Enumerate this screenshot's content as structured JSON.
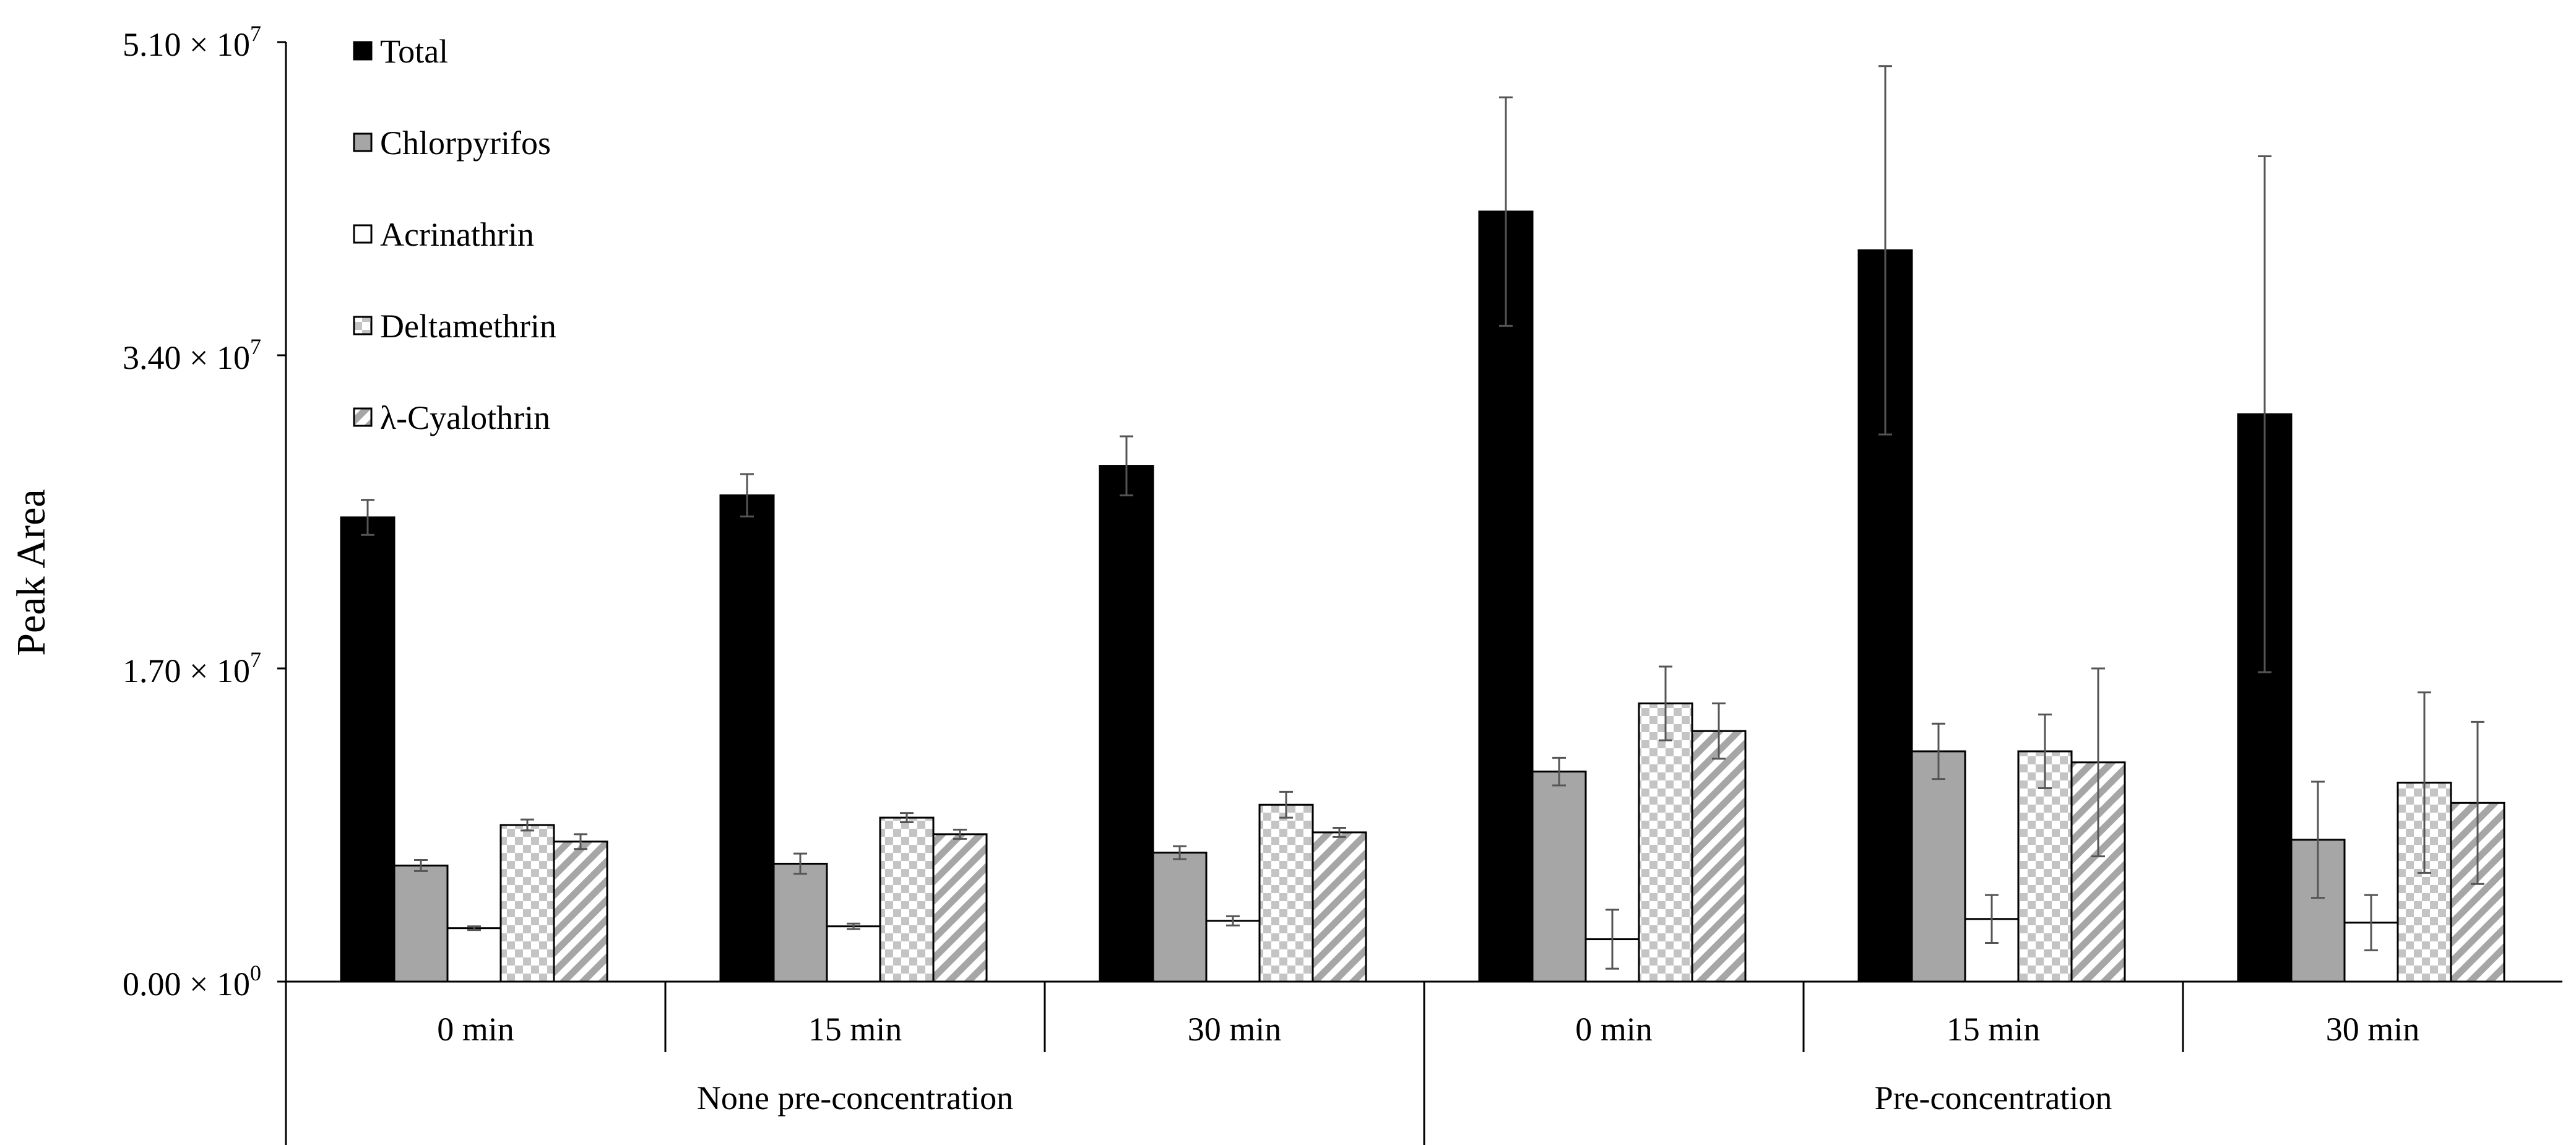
{
  "chart_data": {
    "type": "bar",
    "title": "",
    "xlabel": "",
    "ylabel": "Peak  Area",
    "ylim": [
      0,
      51000000
    ],
    "yticks": [
      {
        "value": 0,
        "mantissa": "0.00 × 10",
        "exp": "0"
      },
      {
        "value": 17000000,
        "mantissa": "1.70 × 10",
        "exp": "7"
      },
      {
        "value": 34000000,
        "mantissa": "3.40 × 10",
        "exp": "7"
      },
      {
        "value": 51000000,
        "mantissa": "5.10 × 10",
        "exp": "7"
      }
    ],
    "groups": [
      {
        "name": "None pre-concentration",
        "categories": [
          "0 min",
          "15 min",
          "30 min"
        ]
      },
      {
        "name": "Pre-concentration",
        "categories": [
          "0 min",
          "15 min",
          "30 min"
        ]
      }
    ],
    "legend_position": "top-left",
    "series": [
      {
        "name": "Total",
        "pattern": "solid-black",
        "values": [
          25200000,
          26400000,
          28000000,
          41800000,
          39700000,
          30800000
        ],
        "errors": [
          950000,
          1150000,
          1600000,
          6200000,
          10000000,
          14000000
        ]
      },
      {
        "name": "Chlorpyrifos",
        "pattern": "solid-gray",
        "values": [
          6300000,
          6400000,
          7000000,
          11400000,
          12500000,
          7700000
        ],
        "errors": [
          300000,
          550000,
          350000,
          750000,
          1500000,
          3150000
        ]
      },
      {
        "name": "Acrinathrin",
        "pattern": "white",
        "values": [
          2900000,
          3000000,
          3300000,
          2300000,
          3400000,
          3200000
        ],
        "errors": [
          100000,
          150000,
          250000,
          1600000,
          1300000,
          1500000
        ]
      },
      {
        "name": "Deltamethrin",
        "pattern": "checkered",
        "values": [
          8500000,
          8900000,
          9600000,
          15100000,
          12500000,
          10800000
        ],
        "errors": [
          300000,
          250000,
          700000,
          2000000,
          2000000,
          4900000
        ]
      },
      {
        "name": "λ-Cyalothrin",
        "pattern": "diagonal-hatch",
        "values": [
          7600000,
          8000000,
          8100000,
          13600000,
          11900000,
          9700000
        ],
        "errors": [
          400000,
          250000,
          250000,
          1500000,
          5100000,
          4400000
        ]
      }
    ],
    "colors": {
      "total": "#000000",
      "chlorpyrifos": "#a6a6a6",
      "acrinathrin": "#ffffff",
      "pattern_light": "#c8c8c8",
      "pattern_dark": "#7f7f7f",
      "error_bar": "#555555",
      "axis": "#000000"
    }
  }
}
